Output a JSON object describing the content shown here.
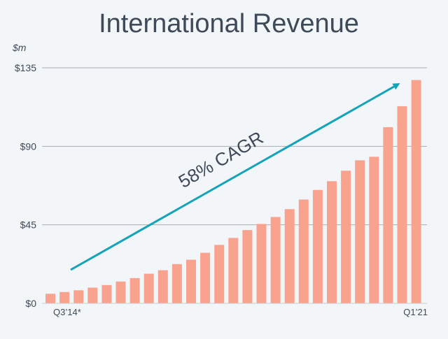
{
  "chart_data": {
    "type": "bar",
    "title": "International Revenue",
    "unit_label": "$m",
    "yticks": [
      "$0",
      "$45",
      "$90",
      "$135"
    ],
    "ytick_values": [
      0,
      45,
      90,
      135
    ],
    "ylim": [
      0,
      135
    ],
    "x_start_label": "Q3’14*",
    "x_end_label": "Q1’21",
    "values": [
      5.5,
      6.5,
      7.5,
      9,
      10.5,
      12.5,
      14.5,
      17,
      19,
      22.5,
      25,
      29,
      33.5,
      37.5,
      42,
      45.5,
      49.5,
      54,
      59.5,
      65,
      70,
      76,
      82,
      84,
      101,
      113,
      128
    ],
    "annotation": "58% CAGR",
    "grid": true,
    "colors": {
      "bar": "#f9a38e",
      "arrow": "#14a3b8",
      "grid": "#a9aeb4",
      "text": "#3e4a57",
      "axis": "#c9cdd2"
    }
  }
}
